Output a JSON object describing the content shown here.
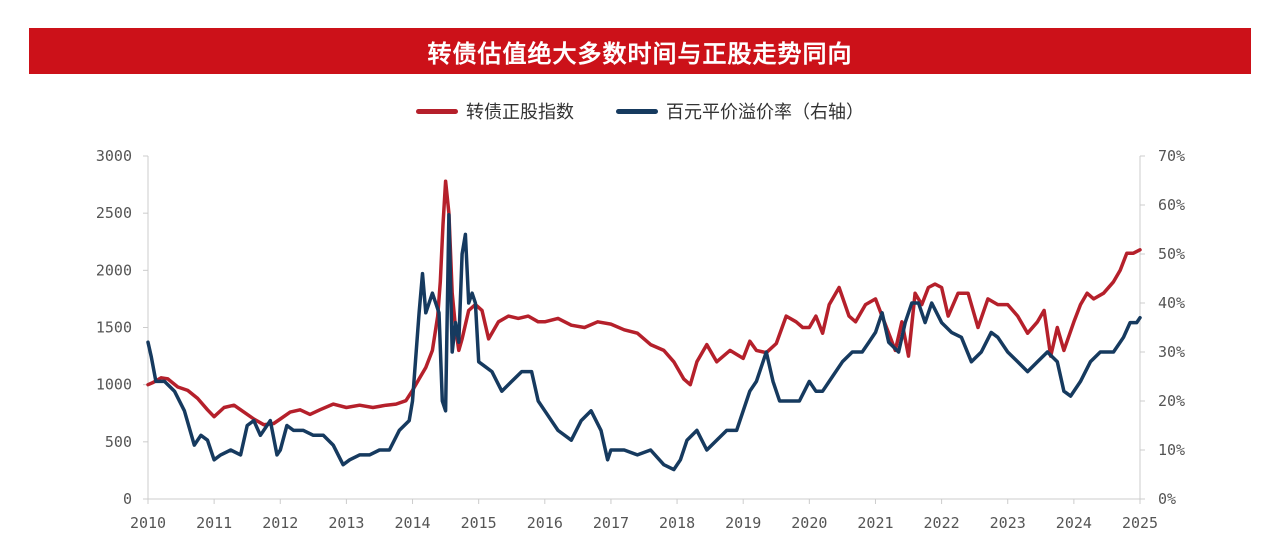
{
  "colors": {
    "banner": "#cc1119",
    "series_main": "#b5202b",
    "series_right": "#163a5f",
    "axis": "#cccccc",
    "text": "#333333"
  },
  "banner": {
    "title": "转债估值绝大多数时间与正股走势同向"
  },
  "chart_data": {
    "type": "line",
    "xlim": [
      2010,
      2025
    ],
    "x_ticks": [
      "2010",
      "2011",
      "2012",
      "2013",
      "2014",
      "2015",
      "2016",
      "2017",
      "2018",
      "2019",
      "2020",
      "2021",
      "2022",
      "2023",
      "2024",
      "2025"
    ],
    "ylim": [
      0,
      3000
    ],
    "y_ticks": [
      "3000",
      "2500",
      "2000",
      "1500",
      "1000",
      "500",
      "0"
    ],
    "y2lim": [
      0,
      70
    ],
    "y2_ticks": [
      "70%",
      "60%",
      "50%",
      "40%",
      "30%",
      "20%",
      "10%",
      "0%"
    ],
    "grid": false,
    "legend_position": "top-center",
    "series": [
      {
        "name": "转债正股指数",
        "axis": "left",
        "x": [
          2010.0,
          2010.08,
          2010.2,
          2010.3,
          2010.45,
          2010.6,
          2010.75,
          2010.9,
          2011.0,
          2011.15,
          2011.3,
          2011.45,
          2011.6,
          2011.75,
          2011.9,
          2012.0,
          2012.15,
          2012.3,
          2012.45,
          2012.6,
          2012.8,
          2013.0,
          2013.2,
          2013.4,
          2013.6,
          2013.75,
          2013.9,
          2014.0,
          2014.1,
          2014.2,
          2014.3,
          2014.38,
          2014.42,
          2014.46,
          2014.5,
          2014.55,
          2014.6,
          2014.65,
          2014.7,
          2014.75,
          2014.85,
          2014.95,
          2015.05,
          2015.15,
          2015.3,
          2015.45,
          2015.6,
          2015.75,
          2015.9,
          2016.0,
          2016.2,
          2016.4,
          2016.6,
          2016.8,
          2017.0,
          2017.2,
          2017.4,
          2017.6,
          2017.8,
          2017.95,
          2018.1,
          2018.2,
          2018.3,
          2018.45,
          2018.6,
          2018.8,
          2019.0,
          2019.1,
          2019.2,
          2019.35,
          2019.5,
          2019.65,
          2019.8,
          2019.9,
          2020.0,
          2020.1,
          2020.2,
          2020.3,
          2020.45,
          2020.6,
          2020.7,
          2020.85,
          2021.0,
          2021.1,
          2021.2,
          2021.3,
          2021.4,
          2021.5,
          2021.6,
          2021.7,
          2021.8,
          2021.9,
          2022.0,
          2022.1,
          2022.25,
          2022.4,
          2022.55,
          2022.7,
          2022.85,
          2023.0,
          2023.15,
          2023.3,
          2023.45,
          2023.55,
          2023.65,
          2023.75,
          2023.85,
          2024.0,
          2024.1,
          2024.2,
          2024.3,
          2024.45,
          2024.6,
          2024.7,
          2024.8,
          2024.9,
          2025.0
        ],
        "y": [
          1000,
          1020,
          1060,
          1050,
          980,
          950,
          880,
          780,
          720,
          800,
          820,
          760,
          700,
          650,
          660,
          700,
          760,
          780,
          740,
          780,
          830,
          800,
          820,
          800,
          820,
          830,
          860,
          950,
          1050,
          1150,
          1300,
          1600,
          1900,
          2400,
          2780,
          2500,
          1800,
          1500,
          1300,
          1400,
          1650,
          1700,
          1650,
          1400,
          1550,
          1600,
          1580,
          1600,
          1550,
          1550,
          1580,
          1520,
          1500,
          1550,
          1530,
          1480,
          1450,
          1350,
          1300,
          1200,
          1050,
          1000,
          1200,
          1350,
          1200,
          1300,
          1230,
          1380,
          1300,
          1280,
          1360,
          1600,
          1550,
          1500,
          1500,
          1600,
          1450,
          1700,
          1850,
          1600,
          1550,
          1700,
          1750,
          1600,
          1450,
          1300,
          1550,
          1250,
          1800,
          1700,
          1850,
          1880,
          1850,
          1600,
          1800,
          1800,
          1500,
          1750,
          1700,
          1700,
          1600,
          1450,
          1550,
          1650,
          1250,
          1500,
          1300,
          1550,
          1700,
          1800,
          1750,
          1800,
          1900,
          2000,
          2150,
          2150,
          2180
        ]
      },
      {
        "name": "百元平价溢价率（右轴）",
        "axis": "right",
        "x": [
          2010.0,
          2010.05,
          2010.12,
          2010.25,
          2010.4,
          2010.55,
          2010.7,
          2010.8,
          2010.9,
          2011.0,
          2011.1,
          2011.25,
          2011.4,
          2011.5,
          2011.6,
          2011.7,
          2011.85,
          2011.95,
          2012.0,
          2012.1,
          2012.2,
          2012.35,
          2012.5,
          2012.65,
          2012.8,
          2012.95,
          2013.05,
          2013.2,
          2013.35,
          2013.5,
          2013.65,
          2013.8,
          2013.95,
          2014.0,
          2014.1,
          2014.15,
          2014.2,
          2014.25,
          2014.3,
          2014.35,
          2014.4,
          2014.45,
          2014.5,
          2014.55,
          2014.6,
          2014.65,
          2014.7,
          2014.75,
          2014.8,
          2014.85,
          2014.9,
          2014.95,
          2015.0,
          2015.1,
          2015.2,
          2015.35,
          2015.5,
          2015.65,
          2015.8,
          2015.9,
          2016.0,
          2016.2,
          2016.4,
          2016.55,
          2016.7,
          2016.85,
          2016.95,
          2017.0,
          2017.2,
          2017.4,
          2017.6,
          2017.8,
          2017.95,
          2018.05,
          2018.15,
          2018.3,
          2018.45,
          2018.6,
          2018.75,
          2018.9,
          2019.0,
          2019.1,
          2019.2,
          2019.35,
          2019.45,
          2019.55,
          2019.7,
          2019.85,
          2020.0,
          2020.1,
          2020.2,
          2020.35,
          2020.5,
          2020.65,
          2020.8,
          2020.9,
          2021.0,
          2021.1,
          2021.2,
          2021.35,
          2021.45,
          2021.55,
          2021.65,
          2021.75,
          2021.85,
          2022.0,
          2022.15,
          2022.3,
          2022.45,
          2022.6,
          2022.75,
          2022.85,
          2023.0,
          2023.15,
          2023.3,
          2023.45,
          2023.6,
          2023.75,
          2023.85,
          2023.95,
          2024.1,
          2024.25,
          2024.4,
          2024.6,
          2024.75,
          2024.85,
          2024.95,
          2025.0
        ],
        "y": [
          32,
          29,
          24,
          24,
          22,
          18,
          11,
          13,
          12,
          8,
          9,
          10,
          9,
          15,
          16,
          13,
          16,
          9,
          10,
          15,
          14,
          14,
          13,
          13,
          11,
          7,
          8,
          9,
          9,
          10,
          10,
          14,
          16,
          20,
          38,
          46,
          38,
          40,
          42,
          40,
          38,
          20,
          18,
          58,
          30,
          36,
          32,
          50,
          54,
          40,
          42,
          40,
          28,
          27,
          26,
          22,
          24,
          26,
          26,
          20,
          18,
          14,
          12,
          16,
          18,
          14,
          8,
          10,
          10,
          9,
          10,
          7,
          6,
          8,
          12,
          14,
          10,
          12,
          14,
          14,
          18,
          22,
          24,
          30,
          24,
          20,
          20,
          20,
          24,
          22,
          22,
          25,
          28,
          30,
          30,
          32,
          34,
          38,
          32,
          30,
          36,
          40,
          40,
          36,
          40,
          36,
          34,
          33,
          28,
          30,
          34,
          33,
          30,
          28,
          26,
          28,
          30,
          28,
          22,
          21,
          24,
          28,
          30,
          30,
          33,
          36,
          36,
          37
        ]
      }
    ]
  }
}
